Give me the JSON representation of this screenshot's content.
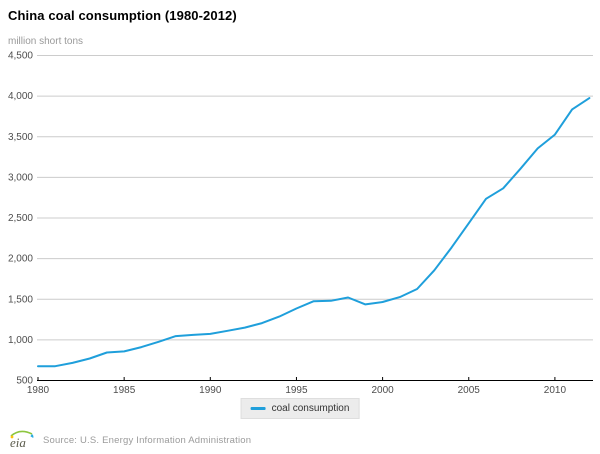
{
  "header": {
    "title": "China coal consumption (1980-2012)",
    "units_label": "million short tons"
  },
  "legend": {
    "label": "coal consumption"
  },
  "footer": {
    "logo_text": "eia",
    "source": "Source: U.S. Energy Information Administration"
  },
  "colors": {
    "line": "#1f9fdb",
    "grid": "#cccccc",
    "axis": "#000000",
    "axis_label": "#4d4d4d",
    "legend_bg": "#ececec",
    "units_text": "#999999",
    "source_text": "#9b9b9b",
    "logo_green": "#8dc63f",
    "logo_blue": "#29abe2",
    "logo_yellow": "#ffc20e",
    "logo_text_color": "#5b5b4c"
  },
  "chart_data": {
    "type": "line",
    "title": "China coal consumption (1980-2012)",
    "xlabel": "",
    "ylabel": "million short tons",
    "grid": true,
    "legend_position": "bottom",
    "xlim": [
      1980,
      2012.2
    ],
    "ylim": [
      500,
      4500
    ],
    "x_ticks": [
      1980,
      1985,
      1990,
      1995,
      2000,
      2005,
      2010
    ],
    "x_tick_labels": [
      "1980",
      "1985",
      "1990",
      "1995",
      "2000",
      "2005",
      "2010"
    ],
    "y_ticks": [
      500,
      1000,
      1500,
      2000,
      2500,
      3000,
      3500,
      4000,
      4500
    ],
    "y_tick_labels": [
      "500",
      "1,000",
      "1,500",
      "2,000",
      "2,500",
      "3,000",
      "3,500",
      "4,000",
      "4,500"
    ],
    "x": [
      1980,
      1981,
      1982,
      1983,
      1984,
      1985,
      1986,
      1987,
      1988,
      1989,
      1990,
      1991,
      1992,
      1993,
      1994,
      1995,
      1996,
      1997,
      1998,
      1999,
      2000,
      2001,
      2002,
      2003,
      2004,
      2005,
      2006,
      2007,
      2008,
      2009,
      2010,
      2011,
      2012
    ],
    "series": [
      {
        "name": "coal consumption",
        "values": [
          670,
          670,
          710,
          765,
          838,
          852,
          905,
          970,
          1040,
          1055,
          1067,
          1105,
          1145,
          1200,
          1280,
          1380,
          1470,
          1475,
          1515,
          1430,
          1460,
          1520,
          1620,
          1850,
          2130,
          2430,
          2730,
          2860,
          3100,
          3350,
          3520,
          3830,
          3970
        ]
      }
    ]
  }
}
